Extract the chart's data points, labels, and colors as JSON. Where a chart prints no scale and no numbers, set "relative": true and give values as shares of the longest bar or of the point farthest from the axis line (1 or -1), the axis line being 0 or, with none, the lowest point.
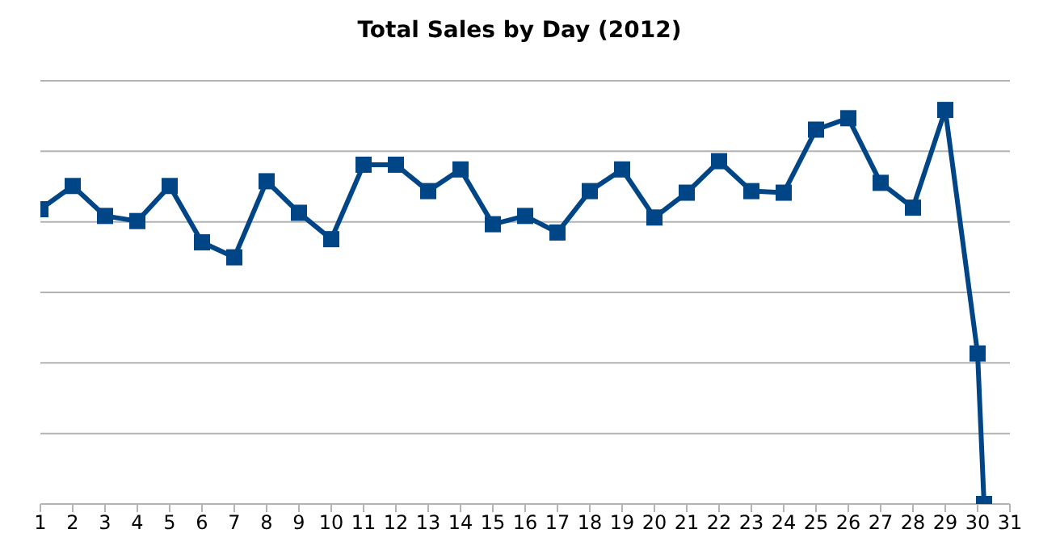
{
  "chart_data": {
    "type": "line",
    "title": "Total Sales by Day (2012)",
    "relative": true,
    "x": [
      1,
      2,
      3,
      4,
      5,
      6,
      7,
      8,
      9,
      10,
      11,
      12,
      13,
      14,
      15,
      16,
      17,
      18,
      19,
      20,
      21,
      22,
      23,
      24,
      25,
      26,
      27,
      28,
      29,
      30,
      30.2
    ],
    "series": [
      {
        "color": "#004586",
        "values": [
          0.748,
          0.807,
          0.731,
          0.718,
          0.807,
          0.664,
          0.626,
          0.819,
          0.739,
          0.672,
          0.861,
          0.861,
          0.794,
          0.849,
          0.71,
          0.731,
          0.689,
          0.794,
          0.849,
          0.727,
          0.79,
          0.87,
          0.794,
          0.79,
          0.95,
          0.979,
          0.815,
          0.752,
          1,
          0.382,
          0
        ]
      }
    ],
    "xlim": [
      1,
      31
    ],
    "xticks": [
      1,
      2,
      3,
      4,
      5,
      6,
      7,
      8,
      9,
      10,
      11,
      12,
      13,
      14,
      15,
      16,
      17,
      18,
      19,
      20,
      21,
      22,
      23,
      24,
      25,
      26,
      27,
      28,
      29,
      30,
      31
    ],
    "grid": "y",
    "marker": "square",
    "line_style": "solid"
  }
}
